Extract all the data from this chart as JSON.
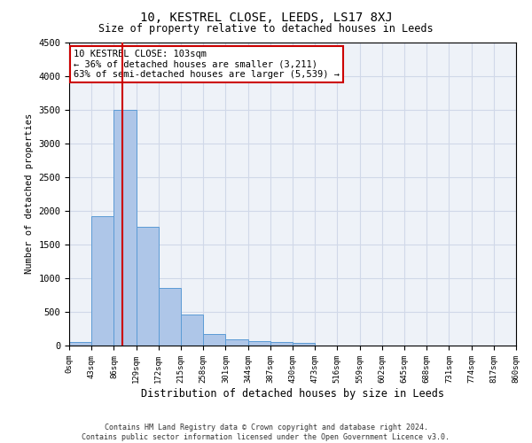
{
  "title": "10, KESTREL CLOSE, LEEDS, LS17 8XJ",
  "subtitle": "Size of property relative to detached houses in Leeds",
  "xlabel": "Distribution of detached houses by size in Leeds",
  "ylabel": "Number of detached properties",
  "footer_line1": "Contains HM Land Registry data © Crown copyright and database right 2024.",
  "footer_line2": "Contains public sector information licensed under the Open Government Licence v3.0.",
  "annotation_title": "10 KESTREL CLOSE: 103sqm",
  "annotation_line1": "← 36% of detached houses are smaller (3,211)",
  "annotation_line2": "63% of semi-detached houses are larger (5,539) →",
  "bar_edges": [
    0,
    43,
    86,
    129,
    172,
    215,
    258,
    301,
    344,
    387,
    430,
    473,
    516,
    559,
    602,
    645,
    688,
    731,
    774,
    817,
    860
  ],
  "bar_values": [
    50,
    1920,
    3500,
    1760,
    850,
    460,
    165,
    95,
    65,
    55,
    40,
    0,
    0,
    0,
    0,
    0,
    0,
    0,
    0,
    0
  ],
  "bar_color": "#aec6e8",
  "bar_edgecolor": "#5b9bd5",
  "grid_color": "#d0d8e8",
  "background_color": "#eef2f8",
  "redline_x": 103,
  "annotation_box_color": "#cc0000",
  "ylim": [
    0,
    4500
  ],
  "yticks": [
    0,
    500,
    1000,
    1500,
    2000,
    2500,
    3000,
    3500,
    4000,
    4500
  ]
}
